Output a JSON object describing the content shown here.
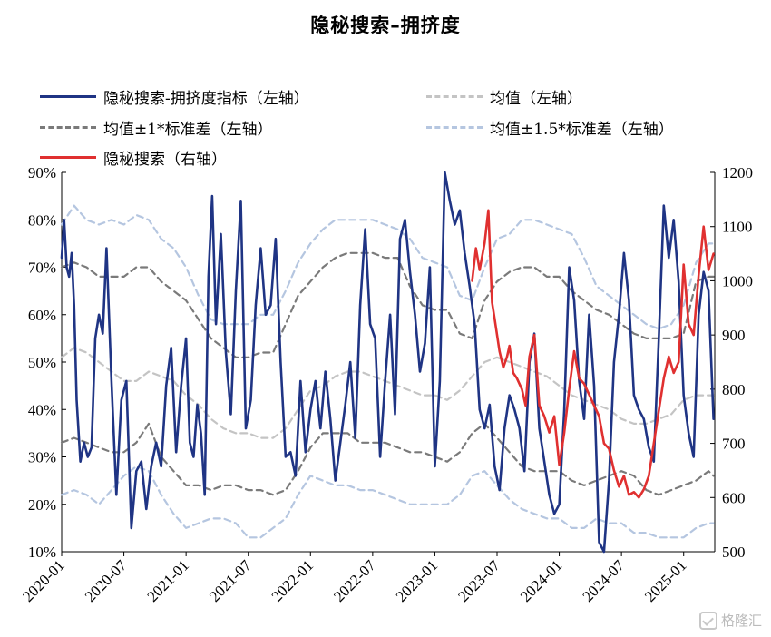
{
  "chart_data": {
    "type": "line",
    "title": "隐秘搜索–拥挤度",
    "legend": [
      {
        "label": "隐秘搜索-拥挤度指标（左轴）",
        "color": "#1f3484",
        "style": "solid"
      },
      {
        "label": "均值（左轴）",
        "color": "#c4c4c4",
        "style": "dashed"
      },
      {
        "label": "均值±1*标准差（左轴）",
        "color": "#7a7a7a",
        "style": "dashed"
      },
      {
        "label": "均值±1.5*标准差（左轴）",
        "color": "#b5c6e0",
        "style": "dashed"
      },
      {
        "label": "隐秘搜索（右轴）",
        "color": "#e03030",
        "style": "solid"
      }
    ],
    "x_tick_labels": [
      "2020-01",
      "2020-07",
      "2021-01",
      "2021-07",
      "2022-01",
      "2022-07",
      "2023-01",
      "2023-07",
      "2024-01",
      "2024-07",
      "2025-01"
    ],
    "y_left": {
      "ticks": [
        "10%",
        "20%",
        "30%",
        "40%",
        "50%",
        "60%",
        "70%",
        "80%",
        "90%"
      ],
      "range": [
        10,
        90
      ]
    },
    "y_right": {
      "ticks": [
        "500",
        "600",
        "700",
        "800",
        "900",
        "1000",
        "1100",
        "1200"
      ],
      "range": [
        500,
        1200
      ]
    },
    "series": [
      {
        "name": "隐秘搜索-拥挤度指标（左轴）",
        "axis": "left",
        "color": "#1f3484",
        "style": "solid",
        "x": [
          2020.0,
          2020.02,
          2020.04,
          2020.06,
          2020.08,
          2020.1,
          2020.12,
          2020.15,
          2020.18,
          2020.21,
          2020.24,
          2020.27,
          2020.3,
          2020.33,
          2020.36,
          2020.4,
          2020.44,
          2020.48,
          2020.52,
          2020.56,
          2020.6,
          2020.64,
          2020.68,
          2020.72,
          2020.76,
          2020.8,
          2020.84,
          2020.88,
          2020.92,
          2020.96,
          2021.0,
          2021.03,
          2021.06,
          2021.09,
          2021.12,
          2021.15,
          2021.18,
          2021.21,
          2021.24,
          2021.28,
          2021.32,
          2021.36,
          2021.4,
          2021.44,
          2021.48,
          2021.52,
          2021.56,
          2021.6,
          2021.64,
          2021.68,
          2021.72,
          2021.76,
          2021.8,
          2021.84,
          2021.88,
          2021.92,
          2021.96,
          2022.0,
          2022.04,
          2022.08,
          2022.12,
          2022.16,
          2022.2,
          2022.24,
          2022.28,
          2022.32,
          2022.36,
          2022.4,
          2022.44,
          2022.48,
          2022.52,
          2022.56,
          2022.6,
          2022.64,
          2022.68,
          2022.72,
          2022.76,
          2022.8,
          2022.84,
          2022.88,
          2022.92,
          2022.96,
          2023.0,
          2023.04,
          2023.08,
          2023.12,
          2023.16,
          2023.2,
          2023.24,
          2023.28,
          2023.32,
          2023.36,
          2023.4,
          2023.44,
          2023.48,
          2023.52,
          2023.56,
          2023.6,
          2023.64,
          2023.68,
          2023.72,
          2023.76,
          2023.8,
          2023.84,
          2023.88,
          2023.92,
          2023.96,
          2024.0,
          2024.04,
          2024.08,
          2024.12,
          2024.16,
          2024.2,
          2024.24,
          2024.28,
          2024.32,
          2024.36,
          2024.4,
          2024.44,
          2024.48,
          2024.52,
          2024.56,
          2024.6,
          2024.64,
          2024.68,
          2024.72,
          2024.76,
          2024.8,
          2024.84,
          2024.88,
          2024.92,
          2024.96,
          2025.0,
          2025.04,
          2025.08,
          2025.12,
          2025.16,
          2025.2,
          2025.24
        ],
        "y": [
          72,
          80,
          70,
          68,
          73,
          62,
          42,
          29,
          33,
          30,
          32,
          55,
          60,
          56,
          74,
          46,
          22,
          42,
          46,
          15,
          27,
          29,
          19,
          28,
          33,
          28,
          45,
          53,
          31,
          45,
          55,
          33,
          30,
          41,
          35,
          22,
          68,
          85,
          58,
          77,
          52,
          39,
          65,
          84,
          36,
          42,
          62,
          74,
          60,
          62,
          76,
          50,
          30,
          31,
          26,
          46,
          31,
          40,
          46,
          36,
          48,
          38,
          25,
          33,
          41,
          50,
          34,
          62,
          78,
          58,
          55,
          30,
          46,
          60,
          39,
          76,
          80,
          69,
          60,
          48,
          54,
          70,
          28,
          46,
          90,
          84,
          79,
          82,
          73,
          66,
          58,
          40,
          36,
          41,
          28,
          23,
          36,
          43,
          40,
          36,
          27,
          50,
          56,
          36,
          29,
          22,
          18,
          20,
          40,
          70,
          63,
          46,
          38,
          60,
          45,
          12,
          10,
          25,
          50,
          60,
          73,
          63,
          43,
          40,
          38,
          32,
          29,
          55,
          83,
          72,
          80,
          67,
          43,
          35,
          30,
          60,
          69,
          65,
          38
        ]
      },
      {
        "name": "均值（左轴）",
        "axis": "left",
        "color": "#c4c4c4",
        "style": "dashed",
        "x": [
          2020.0,
          2020.1,
          2020.2,
          2020.3,
          2020.4,
          2020.5,
          2020.6,
          2020.7,
          2020.8,
          2020.9,
          2021.0,
          2021.1,
          2021.2,
          2021.3,
          2021.4,
          2021.5,
          2021.6,
          2021.7,
          2021.8,
          2021.9,
          2022.0,
          2022.1,
          2022.2,
          2022.3,
          2022.4,
          2022.5,
          2022.6,
          2022.7,
          2022.8,
          2022.9,
          2023.0,
          2023.1,
          2023.2,
          2023.3,
          2023.4,
          2023.5,
          2023.6,
          2023.7,
          2023.8,
          2023.9,
          2024.0,
          2024.1,
          2024.2,
          2024.3,
          2024.4,
          2024.5,
          2024.6,
          2024.7,
          2024.8,
          2024.9,
          2025.0,
          2025.1,
          2025.2,
          2025.24
        ],
        "y": [
          51,
          53,
          52,
          50,
          48,
          46,
          46,
          48,
          47,
          46,
          43,
          41,
          38,
          36,
          35,
          35,
          34,
          34,
          36,
          40,
          44,
          45,
          47,
          48,
          48,
          47,
          46,
          45,
          44,
          43,
          43,
          42,
          44,
          47,
          50,
          51,
          50,
          49,
          48,
          47,
          45,
          43,
          42,
          41,
          40,
          38,
          37,
          37,
          38,
          39,
          42,
          43,
          43,
          43
        ]
      },
      {
        "name": "均值+1*标准差（左轴）",
        "axis": "left",
        "color": "#7a7a7a",
        "style": "dashed",
        "x": [
          2020.0,
          2020.1,
          2020.2,
          2020.3,
          2020.4,
          2020.5,
          2020.6,
          2020.7,
          2020.8,
          2020.9,
          2021.0,
          2021.1,
          2021.2,
          2021.3,
          2021.4,
          2021.5,
          2021.6,
          2021.7,
          2021.8,
          2021.9,
          2022.0,
          2022.1,
          2022.2,
          2022.3,
          2022.4,
          2022.5,
          2022.6,
          2022.7,
          2022.8,
          2022.9,
          2023.0,
          2023.1,
          2023.2,
          2023.3,
          2023.4,
          2023.5,
          2023.6,
          2023.7,
          2023.8,
          2023.9,
          2024.0,
          2024.1,
          2024.2,
          2024.3,
          2024.4,
          2024.5,
          2024.6,
          2024.7,
          2024.8,
          2024.9,
          2025.0,
          2025.1,
          2025.2,
          2025.24
        ],
        "y": [
          70,
          71,
          70,
          68,
          68,
          68,
          70,
          70,
          67,
          65,
          63,
          59,
          55,
          53,
          51,
          51,
          52,
          52,
          58,
          64,
          67,
          70,
          72,
          73,
          73,
          73,
          72,
          72,
          66,
          62,
          61,
          61,
          56,
          55,
          63,
          67,
          69,
          70,
          70,
          68,
          68,
          65,
          63,
          61,
          60,
          58,
          56,
          55,
          55,
          55,
          56,
          67,
          68,
          68
        ]
      },
      {
        "name": "均值-1*标准差（左轴）",
        "axis": "left",
        "color": "#7a7a7a",
        "style": "dashed",
        "x": [
          2020.0,
          2020.1,
          2020.2,
          2020.3,
          2020.4,
          2020.5,
          2020.6,
          2020.7,
          2020.8,
          2020.9,
          2021.0,
          2021.1,
          2021.2,
          2021.3,
          2021.4,
          2021.5,
          2021.6,
          2021.7,
          2021.8,
          2021.9,
          2022.0,
          2022.1,
          2022.2,
          2022.3,
          2022.4,
          2022.5,
          2022.6,
          2022.7,
          2022.8,
          2022.9,
          2023.0,
          2023.1,
          2023.2,
          2023.3,
          2023.4,
          2023.5,
          2023.6,
          2023.7,
          2023.8,
          2023.9,
          2024.0,
          2024.1,
          2024.2,
          2024.3,
          2024.4,
          2024.5,
          2024.6,
          2024.7,
          2024.8,
          2024.9,
          2025.0,
          2025.1,
          2025.2,
          2025.24
        ],
        "y": [
          33,
          34,
          33,
          32,
          31,
          31,
          33,
          37,
          30,
          27,
          24,
          24,
          23,
          24,
          24,
          23,
          23,
          22,
          23,
          27,
          32,
          35,
          35,
          35,
          33,
          33,
          33,
          32,
          31,
          31,
          30,
          29,
          31,
          35,
          37,
          34,
          31,
          28,
          27,
          27,
          27,
          25,
          24,
          25,
          26,
          27,
          26,
          23,
          22,
          23,
          24,
          25,
          27,
          26
        ]
      },
      {
        "name": "均值+1.5*标准差（左轴）",
        "axis": "left",
        "color": "#b5c6e0",
        "style": "dashed",
        "x": [
          2020.0,
          2020.1,
          2020.2,
          2020.3,
          2020.4,
          2020.5,
          2020.6,
          2020.7,
          2020.8,
          2020.9,
          2021.0,
          2021.1,
          2021.2,
          2021.3,
          2021.4,
          2021.5,
          2021.6,
          2021.7,
          2021.8,
          2021.9,
          2022.0,
          2022.1,
          2022.2,
          2022.3,
          2022.4,
          2022.5,
          2022.6,
          2022.7,
          2022.8,
          2022.9,
          2023.0,
          2023.1,
          2023.2,
          2023.3,
          2023.4,
          2023.5,
          2023.6,
          2023.7,
          2023.8,
          2023.9,
          2024.0,
          2024.1,
          2024.2,
          2024.3,
          2024.4,
          2024.5,
          2024.6,
          2024.7,
          2024.8,
          2024.9,
          2025.0,
          2025.1,
          2025.2,
          2025.24
        ],
        "y": [
          79,
          83,
          80,
          79,
          80,
          79,
          81,
          80,
          76,
          74,
          70,
          64,
          59,
          58,
          58,
          58,
          60,
          60,
          65,
          71,
          75,
          78,
          80,
          80,
          80,
          80,
          79,
          78,
          76,
          72,
          71,
          70,
          64,
          63,
          70,
          76,
          77,
          80,
          80,
          79,
          78,
          77,
          72,
          66,
          64,
          62,
          60,
          58,
          57,
          58,
          62,
          71,
          75,
          75
        ]
      },
      {
        "name": "均值-1.5*标准差（左轴）",
        "axis": "left",
        "color": "#b5c6e0",
        "style": "dashed",
        "x": [
          2020.0,
          2020.1,
          2020.2,
          2020.3,
          2020.4,
          2020.5,
          2020.6,
          2020.7,
          2020.8,
          2020.9,
          2021.0,
          2021.1,
          2021.2,
          2021.3,
          2021.4,
          2021.5,
          2021.6,
          2021.7,
          2021.8,
          2021.9,
          2022.0,
          2022.1,
          2022.2,
          2022.3,
          2022.4,
          2022.5,
          2022.6,
          2022.7,
          2022.8,
          2022.9,
          2023.0,
          2023.1,
          2023.2,
          2023.3,
          2023.4,
          2023.5,
          2023.6,
          2023.7,
          2023.8,
          2023.9,
          2024.0,
          2024.1,
          2024.2,
          2024.3,
          2024.4,
          2024.5,
          2024.6,
          2024.7,
          2024.8,
          2024.9,
          2025.0,
          2025.1,
          2025.2,
          2025.24
        ],
        "y": [
          22,
          23,
          22,
          20,
          23,
          26,
          28,
          27,
          22,
          18,
          15,
          16,
          17,
          17,
          16,
          13,
          13,
          15,
          17,
          22,
          26,
          25,
          24,
          24,
          23,
          23,
          22,
          21,
          20,
          20,
          20,
          20,
          22,
          26,
          27,
          24,
          21,
          19,
          18,
          17,
          17,
          15,
          15,
          17,
          16,
          16,
          14,
          14,
          13,
          13,
          13,
          15,
          16,
          16
        ]
      },
      {
        "name": "隐秘搜索（右轴）",
        "axis": "right",
        "color": "#e03030",
        "style": "solid",
        "x": [
          2023.3,
          2023.33,
          2023.36,
          2023.4,
          2023.43,
          2023.46,
          2023.48,
          2023.52,
          2023.55,
          2023.58,
          2023.6,
          2023.63,
          2023.66,
          2023.7,
          2023.73,
          2023.76,
          2023.8,
          2023.84,
          2023.88,
          2023.92,
          2023.96,
          2024.0,
          2024.04,
          2024.08,
          2024.12,
          2024.16,
          2024.2,
          2024.24,
          2024.28,
          2024.32,
          2024.36,
          2024.4,
          2024.44,
          2024.48,
          2024.52,
          2024.56,
          2024.6,
          2024.64,
          2024.68,
          2024.72,
          2024.76,
          2024.8,
          2024.84,
          2024.88,
          2024.92,
          2024.96,
          2025.0,
          2025.04,
          2025.08,
          2025.12,
          2025.16,
          2025.2,
          2025.24
        ],
        "y": [
          1000,
          1060,
          1020,
          1070,
          1130,
          960,
          930,
          870,
          840,
          860,
          880,
          830,
          820,
          800,
          770,
          860,
          900,
          770,
          750,
          720,
          750,
          660,
          720,
          800,
          870,
          820,
          810,
          790,
          770,
          750,
          700,
          690,
          650,
          620,
          640,
          605,
          610,
          600,
          615,
          640,
          700,
          760,
          820,
          860,
          830,
          850,
          1030,
          920,
          900,
          1010,
          1100,
          1020,
          1050
        ]
      }
    ]
  },
  "watermark": "格隆汇"
}
